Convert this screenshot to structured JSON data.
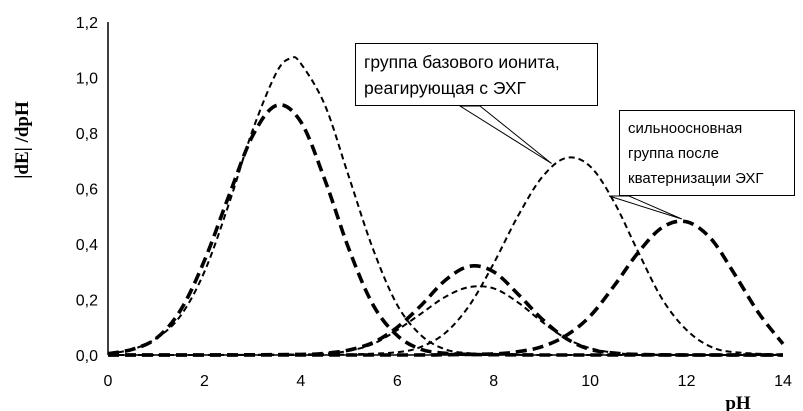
{
  "chart_data": {
    "type": "line",
    "title": "",
    "xlabel": "pH",
    "ylabel": "|dE| /dpH",
    "xlim": [
      0,
      14
    ],
    "ylim": [
      0,
      1.2
    ],
    "x_ticks": [
      "0",
      "2",
      "4",
      "6",
      "8",
      "10",
      "12",
      "14"
    ],
    "y_ticks": [
      "0,0",
      "0,2",
      "0,4",
      "0,6",
      "0,8",
      "1,0",
      "1,2"
    ],
    "grid": false,
    "legend": "none",
    "series": [
      {
        "style": "thick-dashed",
        "x": [
          0,
          0.5,
          1,
          1.5,
          2,
          2.5,
          3,
          3.5,
          4,
          4.5,
          5,
          5.5,
          6,
          6.5,
          7,
          7.5,
          8,
          9,
          10,
          11,
          12,
          13,
          14
        ],
        "y": [
          0.005,
          0.02,
          0.06,
          0.16,
          0.34,
          0.57,
          0.79,
          0.9,
          0.84,
          0.63,
          0.38,
          0.18,
          0.07,
          0.02,
          0.006,
          0.002,
          0.001,
          0,
          0,
          0,
          0,
          0,
          0
        ]
      },
      {
        "style": "thin-dashed",
        "x": [
          0,
          0.5,
          1,
          1.5,
          2,
          2.5,
          3,
          3.5,
          3.8,
          4,
          4.5,
          5,
          5.5,
          6,
          6.5,
          7,
          7.5,
          8,
          9,
          10,
          11,
          12,
          13,
          14
        ],
        "y": [
          0.005,
          0.02,
          0.06,
          0.14,
          0.3,
          0.54,
          0.81,
          1.02,
          1.07,
          1.05,
          0.9,
          0.64,
          0.38,
          0.18,
          0.07,
          0.02,
          0.006,
          0.002,
          0,
          0,
          0,
          0,
          0,
          0
        ]
      },
      {
        "style": "thick-dashed",
        "x": [
          0,
          2,
          4,
          4.5,
          5,
          5.5,
          6,
          6.5,
          7,
          7.5,
          8,
          8.5,
          9,
          9.5,
          10,
          10.5,
          11,
          12,
          13,
          14
        ],
        "y": [
          0,
          0,
          0.002,
          0.006,
          0.018,
          0.045,
          0.1,
          0.18,
          0.27,
          0.32,
          0.3,
          0.22,
          0.13,
          0.06,
          0.02,
          0.007,
          0.002,
          0,
          0,
          0
        ]
      },
      {
        "style": "thin-dashed",
        "x": [
          0,
          2,
          4,
          4.5,
          5,
          5.5,
          6,
          6.5,
          7,
          7.5,
          8,
          8.5,
          9,
          9.5,
          10,
          10.5,
          11,
          12,
          13,
          14
        ],
        "y": [
          0,
          0,
          0.002,
          0.005,
          0.015,
          0.04,
          0.09,
          0.15,
          0.21,
          0.245,
          0.24,
          0.19,
          0.12,
          0.06,
          0.025,
          0.008,
          0.002,
          0,
          0,
          0
        ]
      },
      {
        "style": "thin-dashed",
        "x": [
          0,
          4,
          5,
          6,
          6.5,
          7,
          7.5,
          8,
          8.5,
          9,
          9.5,
          10,
          10.5,
          11,
          11.5,
          12,
          12.5,
          13,
          14
        ],
        "y": [
          0,
          0,
          0.002,
          0.01,
          0.03,
          0.08,
          0.18,
          0.33,
          0.5,
          0.64,
          0.71,
          0.68,
          0.55,
          0.37,
          0.2,
          0.09,
          0.03,
          0.01,
          0.001
        ]
      },
      {
        "style": "thick-dashed",
        "x": [
          0,
          6,
          7,
          8,
          8.5,
          9,
          9.5,
          10,
          10.5,
          11,
          11.5,
          12,
          12.5,
          13,
          13.5,
          14
        ],
        "y": [
          0,
          0,
          0.001,
          0.004,
          0.012,
          0.03,
          0.07,
          0.14,
          0.25,
          0.37,
          0.46,
          0.48,
          0.42,
          0.29,
          0.15,
          0.04
        ]
      }
    ],
    "annotations": [
      {
        "lines": [
          "группа базового ионита,",
          "реагирующая с ЭХГ"
        ],
        "target_x": 9.2,
        "target_y": 0.69
      },
      {
        "lines": [
          "сильноосновная",
          "группа после",
          "кватернизации ЭХГ"
        ],
        "target_x": 11.9,
        "target_y": 0.49
      }
    ]
  }
}
